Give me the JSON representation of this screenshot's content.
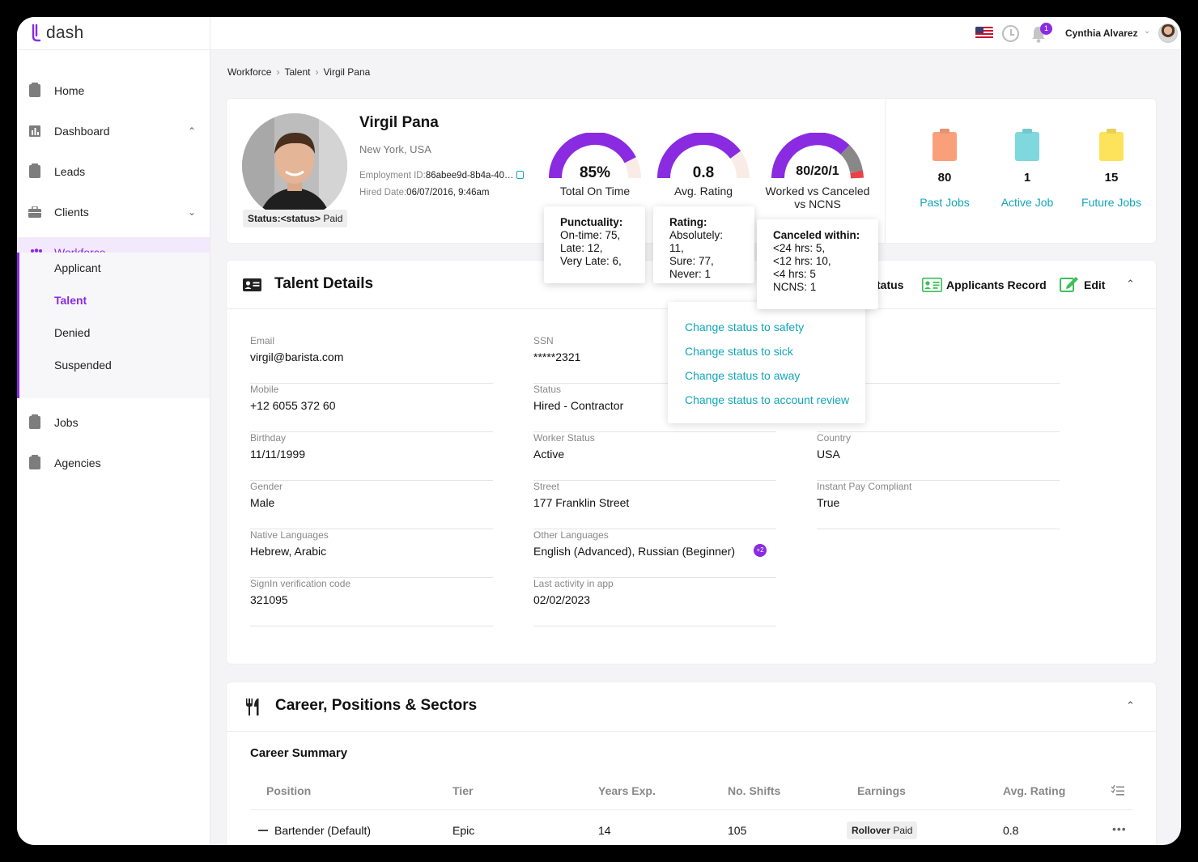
{
  "app": {
    "logo": "dash"
  },
  "topbar": {
    "notifications": "1",
    "user_name": "Cynthia Alvarez"
  },
  "sidebar": {
    "items": [
      {
        "label": "Home"
      },
      {
        "label": "Dashboard"
      },
      {
        "label": "Leads"
      },
      {
        "label": "Clients"
      },
      {
        "label": "Workforce"
      },
      {
        "label": "Jobs"
      },
      {
        "label": "Agencies"
      }
    ],
    "workforce_sub": [
      "Applicant",
      "Talent",
      "Denied",
      "Suspended"
    ]
  },
  "breadcrumb": [
    "Workforce",
    "Talent",
    "Virgil Pana"
  ],
  "profile": {
    "name": "Virgil Pana",
    "location": "New York, USA",
    "employment_id_label": "Employment ID:",
    "employment_id": "86abee9d-8b4a-40…",
    "hired_label": "Hired Date:",
    "hired_date": "06/07/2016, 9:46am",
    "status_label": "Status:<status>",
    "status_value": "Paid"
  },
  "gauges": [
    {
      "value": "85%",
      "label": "Total On Time",
      "fraction": 0.85
    },
    {
      "value": "0.8",
      "label": "Avg. Rating",
      "fraction": 0.8
    },
    {
      "value": "80/20/1",
      "label": "Worked vs Canceled vs NCNS"
    }
  ],
  "tooltips": {
    "punctuality": {
      "title": "Punctuality:",
      "lines": [
        "On-time: 75,",
        "Late: 12,",
        "Very Late: 6,"
      ]
    },
    "rating": {
      "title": "Rating:",
      "lines": [
        "Absolutely: 11,",
        "Sure: 77,",
        "Never: 1"
      ]
    },
    "canceled": {
      "title": "Canceled within:",
      "lines": [
        "<24 hrs: 5,",
        "<12 hrs: 10,",
        "<4 hrs: 5",
        "NCNS: 1"
      ]
    }
  },
  "stats": [
    {
      "value": "80",
      "label": "Past Jobs",
      "color": "#f9a07a"
    },
    {
      "value": "1",
      "label": "Active Job",
      "color": "#7fd8de"
    },
    {
      "value": "15",
      "label": "Future Jobs",
      "color": "#fde25c"
    }
  ],
  "talent_details": {
    "title": "Talent Details",
    "actions": {
      "status": "tatus",
      "applicants_record": "Applicants Record",
      "edit": "Edit"
    },
    "dropdown": [
      "Change status to safety",
      "Change status to sick",
      "Change status to away",
      "Change status to account review"
    ],
    "fields_col1": [
      {
        "label": "Email",
        "value": "virgil@barista.com"
      },
      {
        "label": "Mobile",
        "value": "+12 6055 372 60"
      },
      {
        "label": "Birthday",
        "value": "11/11/1999"
      },
      {
        "label": "Gender",
        "value": "Male"
      },
      {
        "label": "Native Languages",
        "value": "Hebrew, Arabic"
      },
      {
        "label": "SignIn verification code",
        "value": "321095"
      }
    ],
    "fields_col2": [
      {
        "label": "SSN",
        "value": "*****2321"
      },
      {
        "label": "Status",
        "value": "Hired - Contractor"
      },
      {
        "label": "Worker Status",
        "value": "Active"
      },
      {
        "label": "Street",
        "value": "177 Franklin Street"
      },
      {
        "label": "Other Languages",
        "value": "English (Advanced), Russian (Beginner)"
      },
      {
        "label": "Last activity in app",
        "value": "02/02/2023"
      }
    ],
    "other_languages_more": "+2",
    "fields_col3": [
      {
        "label": "Country",
        "value": "USA"
      },
      {
        "label": "Instant Pay Compliant",
        "value": "True"
      }
    ]
  },
  "career": {
    "title": "Career, Positions & Sectors",
    "summary_title": "Career Summary",
    "columns": [
      "Position",
      "Tier",
      "Years Exp.",
      "No. Shifts",
      "Earnings",
      "Avg. Rating"
    ],
    "rows": [
      {
        "position": "Bartender (Default)",
        "tier": "Epic",
        "years": "14",
        "shifts": "105",
        "earnings_bold": "Rollover",
        "earnings_rest": "Paid",
        "rating": "0.8"
      }
    ]
  }
}
